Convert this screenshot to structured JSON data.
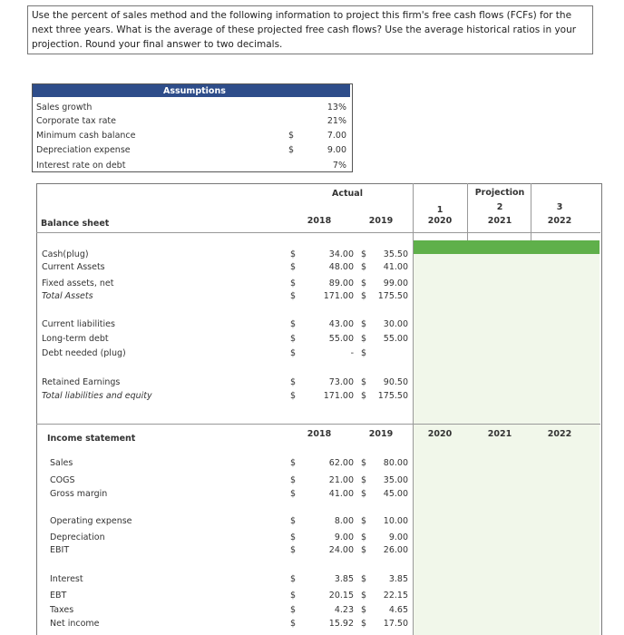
{
  "question": "Use the percent of sales method and the following information to project this firm's free cash flows (FCFs) for the next three years. What is the average of these projected free cash flows? Use the average historical ratios in your projection. Round your final answer to two decimals.",
  "assumptions": {
    "title": "Assumptions",
    "rows": [
      {
        "label": "Sales growth",
        "value": "13%"
      },
      {
        "label": "Corporate tax rate",
        "value": "21%"
      },
      {
        "label": "Minimum cash balance",
        "currency": "$",
        "value": "7.00"
      },
      {
        "label": "Depreciation expense",
        "currency": "$",
        "value": "9.00"
      },
      {
        "label": "Interest rate on debt",
        "value": "7%"
      }
    ]
  },
  "balance_sheet": {
    "title": "Balance sheet",
    "header_actual": "Actual",
    "header_projection": "Projection",
    "period_numbers": [
      "1",
      "2",
      "3"
    ],
    "years": [
      "2018",
      "2019",
      "2020",
      "2021",
      "2022"
    ],
    "groups": [
      [
        {
          "label": "Cash(plug)",
          "cells": [
            {
              "currency": "$",
              "value": "34.00"
            },
            {
              "currency": "$",
              "value": "35.50"
            }
          ]
        },
        {
          "label": "Current Assets",
          "cells": [
            {
              "currency": "$",
              "value": "48.00"
            },
            {
              "currency": "$",
              "value": "41.00"
            }
          ]
        },
        {
          "label": "Fixed assets, net",
          "cells": [
            {
              "currency": "$",
              "value": "89.00"
            },
            {
              "currency": "$",
              "value": "99.00"
            }
          ]
        },
        {
          "label": "Total Assets",
          "italic": true,
          "cells": [
            {
              "currency": "$",
              "value": "171.00"
            },
            {
              "currency": "$",
              "value": "175.50"
            }
          ]
        }
      ],
      [
        {
          "label": "Current liabilities",
          "cells": [
            {
              "currency": "$",
              "value": "43.00"
            },
            {
              "currency": "$",
              "value": "30.00"
            }
          ]
        },
        {
          "label": "Long-term debt",
          "cells": [
            {
              "currency": "$",
              "value": "55.00"
            },
            {
              "currency": "$",
              "value": "55.00"
            }
          ]
        },
        {
          "label": "Debt needed (plug)",
          "cells": [
            {
              "currency": "$",
              "value": "-"
            },
            {
              "currency": "$"
            }
          ]
        }
      ],
      [
        {
          "label": "Retained Earnings",
          "cells": [
            {
              "currency": "$",
              "value": "73.00"
            },
            {
              "currency": "$",
              "value": "90.50"
            }
          ]
        },
        {
          "label": "Total liabilities and equity",
          "italic": true,
          "cells": [
            {
              "currency": "$",
              "value": "171.00"
            },
            {
              "currency": "$",
              "value": "175.50"
            }
          ]
        }
      ]
    ]
  },
  "income_statement": {
    "title": "Income statement",
    "years": [
      "2018",
      "2019",
      "2020",
      "2021",
      "2022"
    ],
    "groups": [
      [
        {
          "label": "Sales",
          "cells": [
            {
              "currency": "$",
              "value": "62.00"
            },
            {
              "currency": "$",
              "value": "80.00"
            }
          ]
        },
        {
          "label": "COGS",
          "cells": [
            {
              "currency": "$",
              "value": "21.00"
            },
            {
              "currency": "$",
              "value": "35.00"
            }
          ]
        },
        {
          "label": "Gross margin",
          "cells": [
            {
              "currency": "$",
              "value": "41.00"
            },
            {
              "currency": "$",
              "value": "45.00"
            }
          ]
        }
      ],
      [
        {
          "label": "Operating expense",
          "cells": [
            {
              "currency": "$",
              "value": "8.00"
            },
            {
              "currency": "$",
              "value": "10.00"
            }
          ]
        },
        {
          "label": "Depreciation",
          "cells": [
            {
              "currency": "$",
              "value": "9.00"
            },
            {
              "currency": "$",
              "value": "9.00"
            }
          ]
        },
        {
          "label": "EBIT",
          "cells": [
            {
              "currency": "$",
              "value": "24.00"
            },
            {
              "currency": "$",
              "value": "26.00"
            }
          ]
        }
      ],
      [
        {
          "label": "Interest",
          "cells": [
            {
              "currency": "$",
              "value": "3.85"
            },
            {
              "currency": "$",
              "value": "3.85"
            }
          ]
        },
        {
          "label": "EBT",
          "cells": [
            {
              "currency": "$",
              "value": "20.15"
            },
            {
              "currency": "$",
              "value": "22.15"
            }
          ]
        },
        {
          "label": "Taxes",
          "cells": [
            {
              "currency": "$",
              "value": "4.23"
            },
            {
              "currency": "$",
              "value": "4.65"
            }
          ]
        },
        {
          "label": "Net income",
          "cells": [
            {
              "currency": "$",
              "value": "15.92"
            },
            {
              "currency": "$",
              "value": "17.50"
            }
          ]
        }
      ]
    ]
  }
}
